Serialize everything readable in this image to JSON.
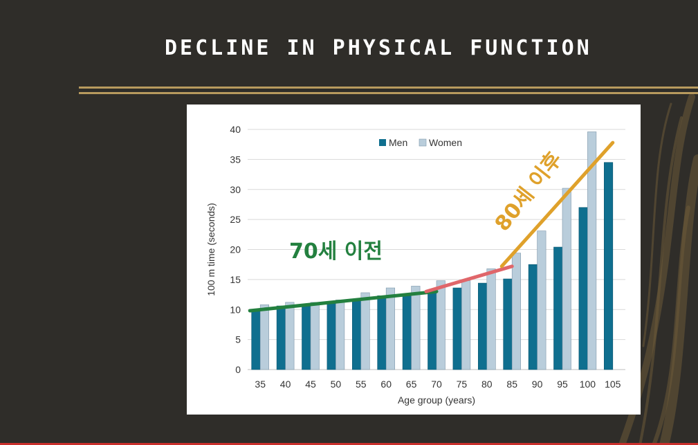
{
  "slide": {
    "title": "DECLINE IN PHYSICAL FUNCTION"
  },
  "colors": {
    "men": "#0f6f8f",
    "women": "#b9cddb",
    "trend_before_70": "#23803f",
    "trend_70_85": "#e0666a",
    "trend_after_80": "#dfa12b"
  },
  "chart_data": {
    "type": "bar",
    "categories": [
      "35",
      "40",
      "45",
      "50",
      "55",
      "60",
      "65",
      "70",
      "75",
      "80",
      "85",
      "90",
      "95",
      "100",
      "105"
    ],
    "series": [
      {
        "name": "Men",
        "values": [
          9.9,
          10.6,
          10.9,
          11.2,
          11.7,
          12.3,
          12.6,
          13.1,
          13.6,
          14.4,
          15.1,
          17.5,
          20.4,
          27.0,
          34.5
        ]
      },
      {
        "name": "Women",
        "values": [
          10.8,
          11.2,
          11.2,
          11.6,
          12.8,
          13.6,
          13.9,
          14.8,
          14.8,
          16.8,
          19.4,
          23.1,
          30.2,
          39.6,
          null
        ]
      }
    ],
    "xlabel": "Age group (years)",
    "ylabel": "100 m time (seconds)",
    "ylim": [
      0,
      40
    ],
    "yticks": [
      0,
      5,
      10,
      15,
      20,
      25,
      30,
      35,
      40
    ],
    "grid": true,
    "legend": "top-center",
    "annotations": [
      {
        "text": "70세 이전",
        "color": "#23803f"
      },
      {
        "text": "80세 이후",
        "color": "#dfa12b"
      }
    ],
    "trend_lines": [
      {
        "name": "before-70",
        "points": [
          [
            "35",
            9.8
          ],
          [
            "70",
            13.0
          ]
        ]
      },
      {
        "name": "70-to-85",
        "points": [
          [
            "70",
            13.0
          ],
          [
            "85",
            17.2
          ]
        ]
      },
      {
        "name": "after-80",
        "points": [
          [
            "85",
            17.2
          ],
          [
            "105",
            37.8
          ]
        ]
      }
    ]
  }
}
